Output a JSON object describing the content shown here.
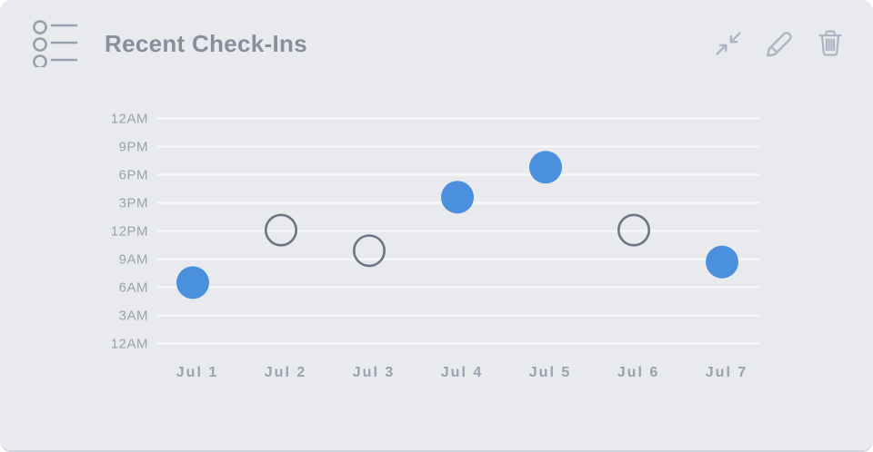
{
  "card": {
    "title": "Recent Check-Ins",
    "colors": {
      "background": "#e9eaee",
      "outside": "#ffffff",
      "title_text": "#878e9c",
      "header_icon": "#99a0ad",
      "toolbar_icon": "#aeb5c2",
      "bottom_border": "#d2d4db"
    }
  },
  "toolbar": {
    "buttons": [
      {
        "icon": "collapse-icon"
      },
      {
        "icon": "edit-icon"
      },
      {
        "icon": "trash-icon"
      }
    ]
  },
  "chart_data": {
    "type": "scatter",
    "title": "Recent Check-Ins",
    "categories": [
      "Jul 1",
      "Jul 2",
      "Jul 3",
      "Jul 4",
      "Jul 5",
      "Jul 6",
      "Jul 7"
    ],
    "y_ticks_top_to_bottom": [
      "12AM",
      "9PM",
      "6PM",
      "3PM",
      "12PM",
      "9AM",
      "6AM",
      "3AM",
      "12AM"
    ],
    "ylim_hours": [
      0,
      24
    ],
    "grid": true,
    "legend": false,
    "points": [
      {
        "day": "Jul 1",
        "time_hours": 6.5,
        "approx_time": "6:30 AM",
        "style": "filled"
      },
      {
        "day": "Jul 2",
        "time_hours": 12.1,
        "approx_time": "12:05 PM",
        "style": "open"
      },
      {
        "day": "Jul 3",
        "time_hours": 9.9,
        "approx_time": "9:55 AM",
        "style": "open"
      },
      {
        "day": "Jul 4",
        "time_hours": 15.6,
        "approx_time": "3:35 PM",
        "style": "filled"
      },
      {
        "day": "Jul 5",
        "time_hours": 18.8,
        "approx_time": "6:50 PM",
        "style": "filled"
      },
      {
        "day": "Jul 6",
        "time_hours": 12.1,
        "approx_time": "12:05 PM",
        "style": "open"
      },
      {
        "day": "Jul 7",
        "time_hours": 8.7,
        "approx_time": "8:40 AM",
        "style": "filled"
      }
    ],
    "colors": {
      "filled": "#4a90dd",
      "open_stroke": "#6d7582",
      "gridline": "#f8f9fb",
      "axis_label": "#9aa1ae"
    }
  }
}
